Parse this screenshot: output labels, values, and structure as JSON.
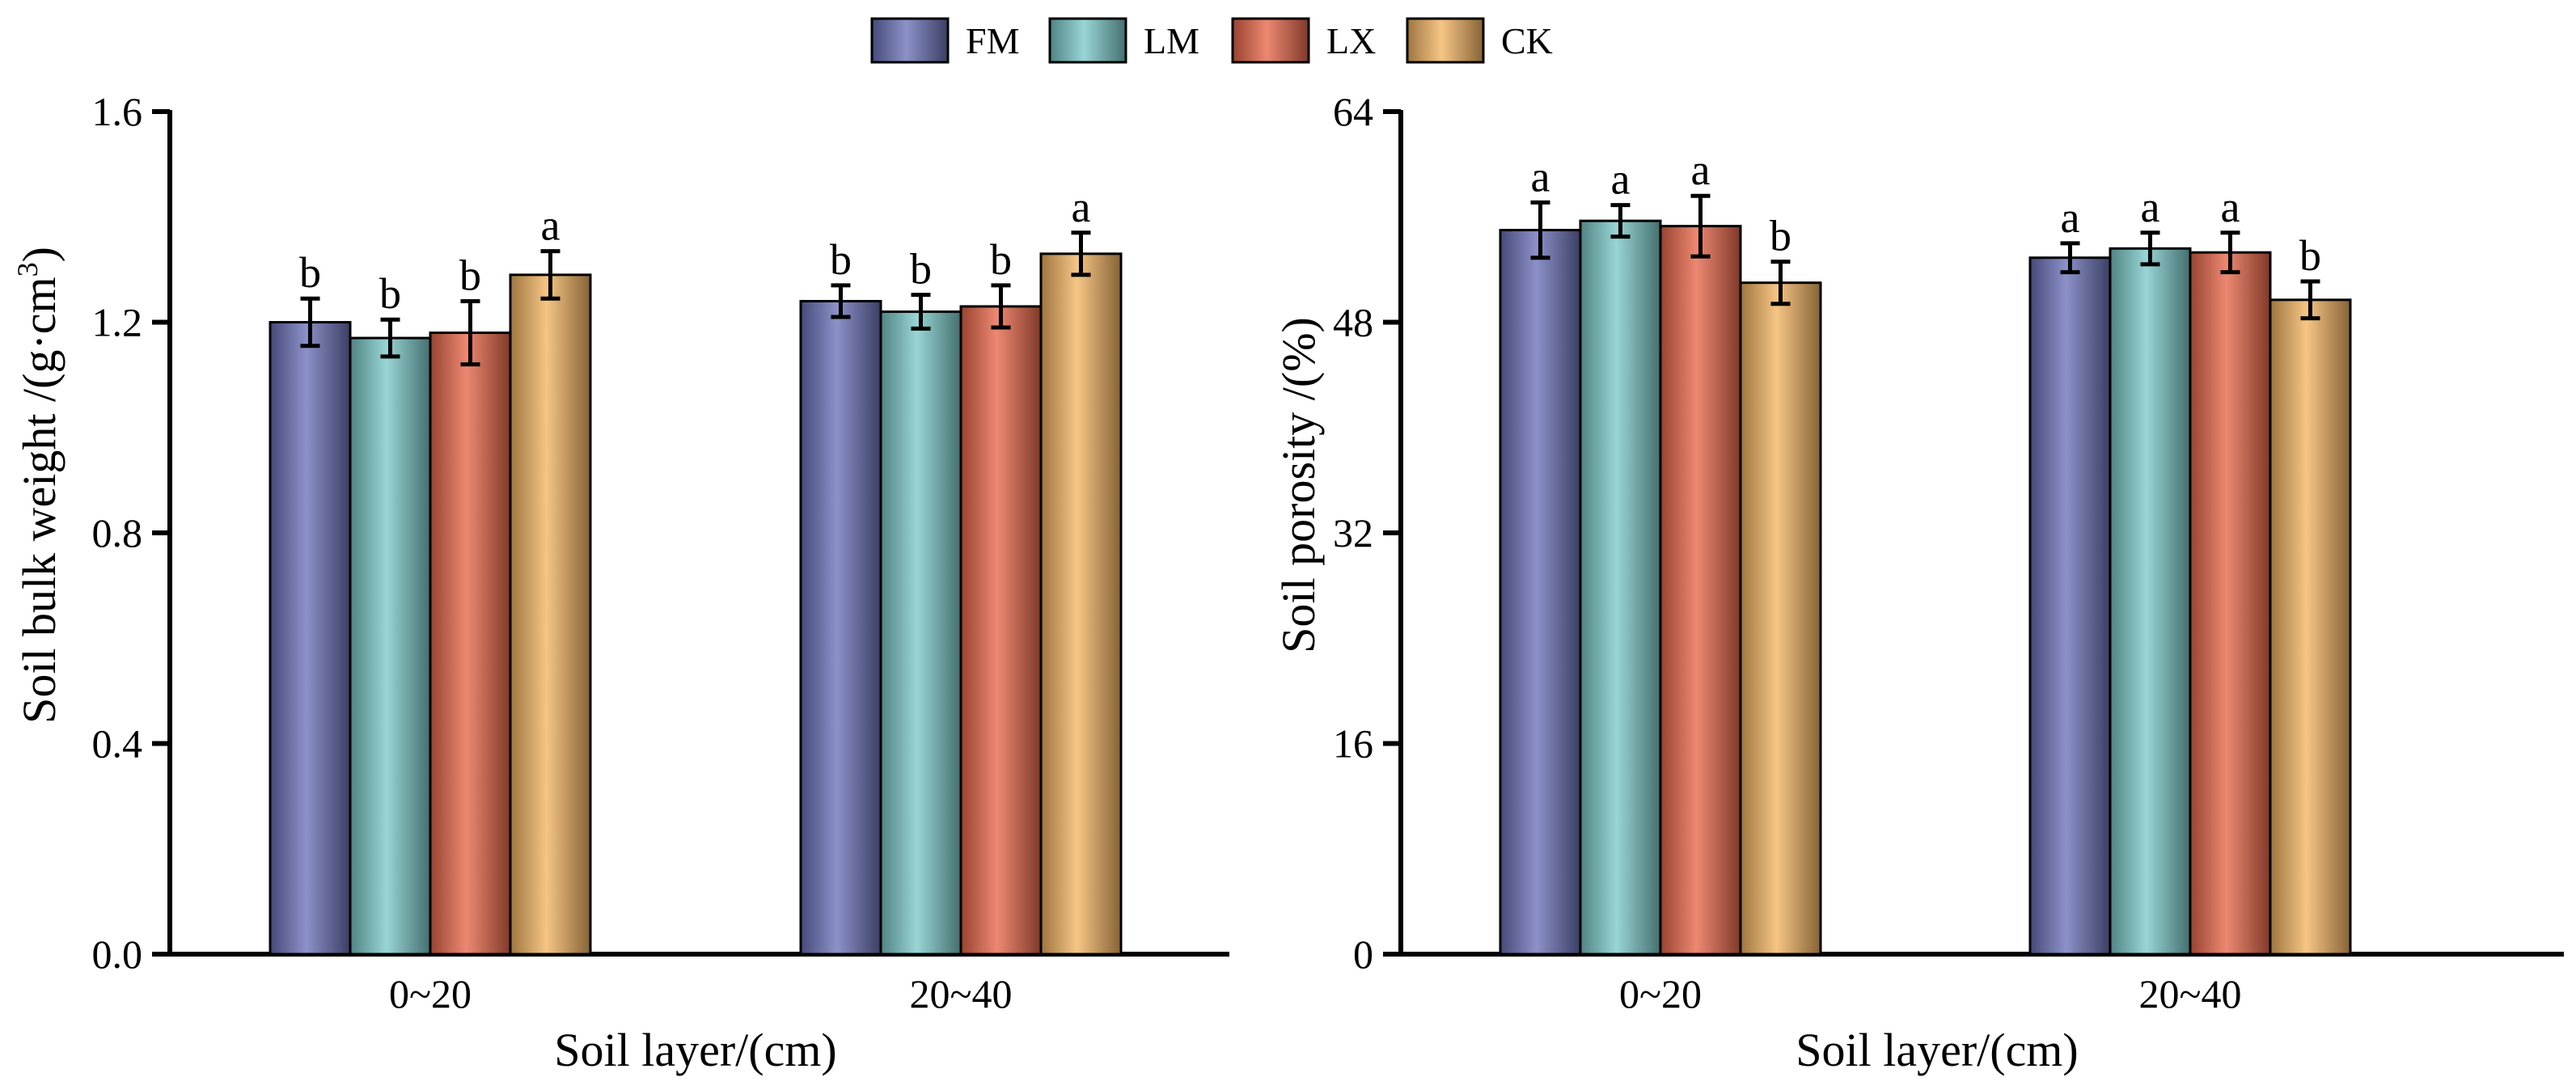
{
  "colors": {
    "FM": "#6b72b8",
    "LM": "#7cc9c9",
    "LX": "#e8674a",
    "CK": "#f3b463"
  },
  "legend": [
    "FM",
    "LM",
    "LX",
    "CK"
  ],
  "chart_data": [
    {
      "type": "bar",
      "categories": [
        "0~20",
        "20~40"
      ],
      "series": [
        {
          "name": "FM",
          "values": [
            1.2,
            1.24
          ],
          "errors": [
            0.045,
            0.03
          ]
        },
        {
          "name": "LM",
          "values": [
            1.17,
            1.22
          ],
          "errors": [
            0.035,
            0.032
          ]
        },
        {
          "name": "LX",
          "values": [
            1.18,
            1.23
          ],
          "errors": [
            0.06,
            0.04
          ]
        },
        {
          "name": "CK",
          "values": [
            1.29,
            1.33
          ],
          "errors": [
            0.045,
            0.04
          ]
        }
      ],
      "letters": [
        [
          "b",
          "b",
          "b",
          "a"
        ],
        [
          "b",
          "b",
          "b",
          "a"
        ]
      ],
      "xlabel": "Soil layer/(cm)",
      "ylabel_main": "Soil bulk weight /(g·cm",
      "ylabel_sup": "3",
      "ylabel_end": ")",
      "ylim": [
        0,
        1.6
      ],
      "yticks": [
        "0.0",
        "0.4",
        "0.8",
        "1.2",
        "1.6"
      ]
    },
    {
      "type": "bar",
      "categories": [
        "0~20",
        "20~40"
      ],
      "series": [
        {
          "name": "FM",
          "values": [
            55.0,
            52.9
          ],
          "errors": [
            2.1,
            1.1
          ]
        },
        {
          "name": "LM",
          "values": [
            55.7,
            53.6
          ],
          "errors": [
            1.2,
            1.2
          ]
        },
        {
          "name": "LX",
          "values": [
            55.3,
            53.3
          ],
          "errors": [
            2.3,
            1.5
          ]
        },
        {
          "name": "CK",
          "values": [
            51.0,
            49.7
          ],
          "errors": [
            1.6,
            1.4
          ]
        }
      ],
      "letters": [
        [
          "a",
          "a",
          "a",
          "b"
        ],
        [
          "a",
          "a",
          "a",
          "b"
        ]
      ],
      "xlabel": "Soil layer/(cm)",
      "ylabel": "Soil porosity /(%)",
      "ylim": [
        0,
        64
      ],
      "yticks": [
        "0",
        "16",
        "32",
        "48",
        "64"
      ]
    }
  ]
}
